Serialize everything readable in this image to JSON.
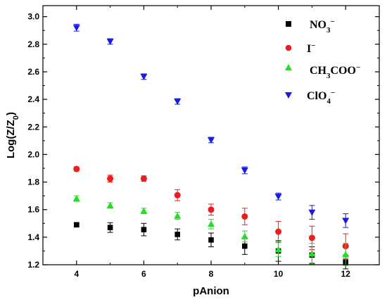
{
  "chart_data": {
    "type": "scatter",
    "xlabel": "pAnion",
    "ylabel": "Log(Z/Z0)",
    "xlim": [
      3,
      13
    ],
    "ylim": [
      1.2,
      3.08
    ],
    "xticks": [
      4,
      6,
      8,
      10,
      12
    ],
    "yticks": [
      1.2,
      1.4,
      1.6,
      1.8,
      2.0,
      2.2,
      2.4,
      2.6,
      2.8,
      3.0
    ],
    "grid": false,
    "legend_position": "top-right",
    "x": [
      4,
      5,
      6,
      7,
      8,
      9,
      10,
      11,
      12
    ],
    "series": [
      {
        "name": "NO3⁻",
        "marker": "square",
        "color": "#000000",
        "values": [
          1.49,
          1.47,
          1.455,
          1.42,
          1.38,
          1.335,
          1.3,
          1.27,
          1.22
        ],
        "errors": [
          0.01,
          0.035,
          0.045,
          0.04,
          0.05,
          0.06,
          0.075,
          0.06,
          0.05
        ]
      },
      {
        "name": "I⁻",
        "marker": "circle",
        "color": "#ee1c1c",
        "values": [
          1.895,
          1.825,
          1.825,
          1.705,
          1.6,
          1.55,
          1.44,
          1.395,
          1.335
        ],
        "errors": [
          0.015,
          0.025,
          0.02,
          0.04,
          0.04,
          0.06,
          0.075,
          0.085,
          0.09
        ]
      },
      {
        "name": "CH3COO⁻",
        "marker": "triangle-up",
        "color": "#22e022",
        "values": [
          1.68,
          1.63,
          1.59,
          1.555,
          1.495,
          1.405,
          1.31,
          1.28,
          1.275
        ],
        "errors": [
          0.02,
          0.02,
          0.02,
          0.025,
          0.035,
          0.04,
          0.05,
          0.075,
          0.08
        ]
      },
      {
        "name": "ClO4⁻",
        "marker": "triangle-down",
        "color": "#1a1ae6",
        "values": [
          2.92,
          2.82,
          2.565,
          2.385,
          2.105,
          1.885,
          1.695,
          1.58,
          1.52
        ],
        "errors": [
          0.025,
          0.02,
          0.02,
          0.02,
          0.02,
          0.025,
          0.025,
          0.05,
          0.05
        ]
      }
    ]
  },
  "legend": {
    "entries": [
      {
        "base": "NO",
        "sub": "3",
        "sup": "−"
      },
      {
        "base": "I",
        "sub": "",
        "sup": "−"
      },
      {
        "base": "CH",
        "sub": "3",
        "rest": "COO",
        "sup": "−"
      },
      {
        "base": "ClO",
        "sub": "4",
        "sup": "−"
      }
    ]
  },
  "axis_titles": {
    "y_main": "Log(Z/Z",
    "y_sub": "0",
    "y_close": ")",
    "x": "pAnion"
  }
}
